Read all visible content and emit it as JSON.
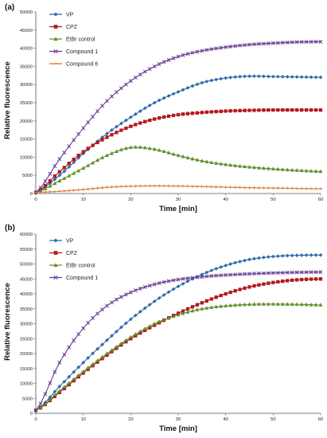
{
  "chart_data": [
    {
      "type": "line",
      "panel_label": "(a)",
      "xlabel": "Time [min]",
      "ylabel": "Relative fluorescence",
      "xlim": [
        0,
        60
      ],
      "ylim": [
        0,
        50000
      ],
      "xticks": [
        "0",
        "10",
        "20",
        "30",
        "40",
        "50",
        "60"
      ],
      "yticks": [
        "0",
        "5000",
        "10000",
        "15000",
        "20000",
        "25000",
        "30000",
        "35000",
        "40000",
        "45000",
        "50000"
      ],
      "legend_position": "top-left",
      "grid": false,
      "x": [
        0,
        5,
        10,
        15,
        20,
        25,
        30,
        35,
        40,
        45,
        50,
        55,
        60
      ],
      "series": [
        {
          "name": "VP",
          "color": "#2e6db4",
          "marker": "diamond",
          "values": [
            300,
            5000,
            11000,
            16500,
            21000,
            25000,
            28000,
            30500,
            31800,
            32300,
            32200,
            32100,
            32000
          ]
        },
        {
          "name": "CPZ",
          "color": "#c0161b",
          "marker": "square",
          "values": [
            300,
            6000,
            11500,
            15500,
            18500,
            20500,
            21700,
            22300,
            22700,
            22900,
            23000,
            23000,
            23000
          ]
        },
        {
          "name": "EtBr control",
          "color": "#6a9b2a",
          "marker": "triangle",
          "values": [
            300,
            3500,
            7000,
            10500,
            12700,
            12200,
            10500,
            9000,
            8000,
            7300,
            6800,
            6400,
            6100
          ]
        },
        {
          "name": "Compound 1",
          "color": "#6b3f99",
          "marker": "x",
          "values": [
            300,
            9500,
            18000,
            25500,
            31000,
            35000,
            37700,
            39300,
            40300,
            41000,
            41400,
            41700,
            41800
          ]
        },
        {
          "name": "Compound 6",
          "color": "#e87722",
          "marker": "dash",
          "values": [
            300,
            600,
            1100,
            1700,
            2000,
            2100,
            2050,
            1900,
            1750,
            1600,
            1500,
            1400,
            1300
          ]
        }
      ]
    },
    {
      "type": "line",
      "panel_label": "(b)",
      "xlabel": "Time [min]",
      "ylabel": "Relative fluorescence",
      "xlim": [
        0,
        60
      ],
      "ylim": [
        0,
        60000
      ],
      "xticks": [
        "0",
        "10",
        "20",
        "30",
        "40",
        "50",
        "60"
      ],
      "yticks": [
        "0",
        "5000",
        "10000",
        "15000",
        "20000",
        "25000",
        "30000",
        "35000",
        "40000",
        "45000",
        "50000",
        "55000",
        "60000"
      ],
      "legend_position": "top-left",
      "grid": false,
      "x": [
        0,
        5,
        10,
        15,
        20,
        25,
        30,
        35,
        40,
        45,
        50,
        55,
        60
      ],
      "series": [
        {
          "name": "VP",
          "color": "#2e6db4",
          "marker": "diamond",
          "values": [
            1000,
            9000,
            17000,
            24500,
            31500,
            37500,
            42500,
            46500,
            49500,
            51500,
            52500,
            52900,
            53000
          ]
        },
        {
          "name": "CPZ",
          "color": "#c0161b",
          "marker": "square",
          "values": [
            1000,
            7000,
            13500,
            19500,
            25000,
            29500,
            33500,
            37000,
            40000,
            42300,
            43800,
            44700,
            45000
          ]
        },
        {
          "name": "EtBr control",
          "color": "#6a9b2a",
          "marker": "triangle",
          "values": [
            1000,
            7500,
            14000,
            20000,
            25500,
            30000,
            33000,
            35000,
            36000,
            36500,
            36600,
            36500,
            36300
          ]
        },
        {
          "name": "Compound 1",
          "color": "#6b3f99",
          "marker": "x",
          "values": [
            1000,
            17000,
            28500,
            36000,
            40500,
            43200,
            44800,
            45700,
            46300,
            46700,
            47000,
            47200,
            47300
          ]
        }
      ]
    }
  ]
}
